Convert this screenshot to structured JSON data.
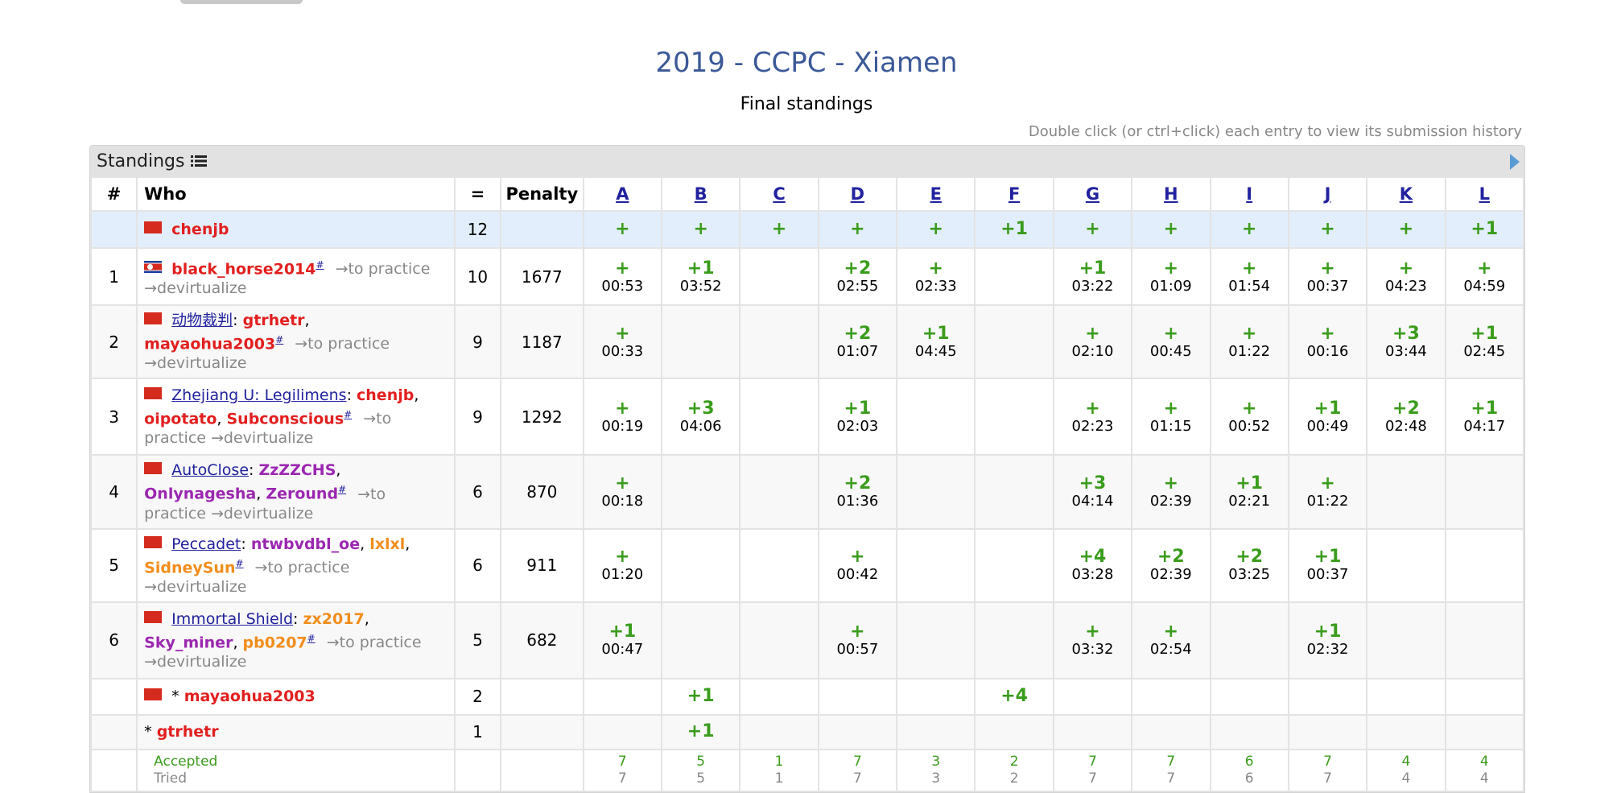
{
  "page": {
    "title": "2019 - CCPC - Xiamen",
    "subtitle": "Final standings",
    "hint": "Double click (or ctrl+click) each entry to view its submission history"
  },
  "panel": {
    "header": "Standings"
  },
  "headers": {
    "rank": "#",
    "who": "Who",
    "solved": "=",
    "penalty": "Penalty"
  },
  "problems": [
    "A",
    "B",
    "C",
    "D",
    "E",
    "F",
    "G",
    "H",
    "I",
    "J",
    "K",
    "L"
  ],
  "common": {
    "to_practice": "→to practice",
    "devirtualize": "→devirtualize",
    "hash": "#"
  },
  "rows": [
    {
      "rank": "",
      "solved": "12",
      "penalty": "",
      "style": "lead",
      "height": 46,
      "flag": "cn",
      "who": [
        {
          "t": "chenjb",
          "c": "red"
        }
      ],
      "links": false,
      "cells": [
        [
          "+",
          ""
        ],
        [
          "+",
          ""
        ],
        [
          "+",
          ""
        ],
        [
          "+",
          ""
        ],
        [
          "+",
          ""
        ],
        [
          "+1",
          ""
        ],
        [
          "+",
          ""
        ],
        [
          "+",
          ""
        ],
        [
          "+",
          ""
        ],
        [
          "+",
          ""
        ],
        [
          "+",
          ""
        ],
        [
          "+1",
          ""
        ]
      ]
    },
    {
      "rank": "1",
      "solved": "10",
      "penalty": "1677",
      "style": "even",
      "height": 71,
      "flag": "kp",
      "who": [
        {
          "t": "black_horse2014",
          "c": "red"
        },
        {
          "t": "#",
          "c": "hash"
        }
      ],
      "links": true,
      "cells": [
        [
          "+",
          "00:53"
        ],
        [
          "+1",
          "03:52"
        ],
        [
          "",
          ""
        ],
        [
          "+2",
          "02:55"
        ],
        [
          "+",
          "02:33"
        ],
        [
          "",
          ""
        ],
        [
          "+1",
          "03:22"
        ],
        [
          "+",
          "01:09"
        ],
        [
          "+",
          "01:54"
        ],
        [
          "+",
          "00:37"
        ],
        [
          "+",
          "04:23"
        ],
        [
          "+",
          "04:59"
        ]
      ]
    },
    {
      "rank": "2",
      "solved": "9",
      "penalty": "1187",
      "style": "odd",
      "height": 72,
      "flag": "cn",
      "who": [
        {
          "t": "动物裁判",
          "c": "team"
        },
        {
          "t": ": ",
          "c": ""
        },
        {
          "t": "gtrhetr",
          "c": "red"
        },
        {
          "t": ", ",
          "c": ""
        },
        {
          "t": "mayaohua2003",
          "c": "red"
        },
        {
          "t": "#",
          "c": "hash"
        }
      ],
      "links": true,
      "cells": [
        [
          "+",
          "00:33"
        ],
        [
          "",
          ""
        ],
        [
          "",
          ""
        ],
        [
          "+2",
          "01:07"
        ],
        [
          "+1",
          "04:45"
        ],
        [
          "",
          ""
        ],
        [
          "+",
          "02:10"
        ],
        [
          "+",
          "00:45"
        ],
        [
          "+",
          "01:22"
        ],
        [
          "+",
          "00:16"
        ],
        [
          "+3",
          "03:44"
        ],
        [
          "+1",
          "02:45"
        ]
      ]
    },
    {
      "rank": "3",
      "solved": "9",
      "penalty": "1292",
      "style": "even",
      "height": 95,
      "flag": "cn",
      "who": [
        {
          "t": "Zhejiang U: Legilimens",
          "c": "team"
        },
        {
          "t": ": ",
          "c": ""
        },
        {
          "t": "chenjb",
          "c": "red"
        },
        {
          "t": ", ",
          "c": ""
        },
        {
          "t": "oipotato",
          "c": "red"
        },
        {
          "t": ", ",
          "c": ""
        },
        {
          "t": "Subconscious",
          "c": "red"
        },
        {
          "t": "#",
          "c": "hash"
        }
      ],
      "links": true,
      "cells": [
        [
          "+",
          "00:19"
        ],
        [
          "+3",
          "04:06"
        ],
        [
          "",
          ""
        ],
        [
          "+1",
          "02:03"
        ],
        [
          "",
          ""
        ],
        [
          "",
          ""
        ],
        [
          "+",
          "02:23"
        ],
        [
          "+",
          "01:15"
        ],
        [
          "+",
          "00:52"
        ],
        [
          "+1",
          "00:49"
        ],
        [
          "+2",
          "02:48"
        ],
        [
          "+1",
          "04:17"
        ]
      ]
    },
    {
      "rank": "4",
      "solved": "6",
      "penalty": "870",
      "style": "odd",
      "height": 70,
      "flag": "cn",
      "who": [
        {
          "t": "AutoClose",
          "c": "team"
        },
        {
          "t": ": ",
          "c": ""
        },
        {
          "t": "ZzZZCHS",
          "c": "purple"
        },
        {
          "t": ", ",
          "c": ""
        },
        {
          "t": "Onlynagesha",
          "c": "purple"
        },
        {
          "t": ", ",
          "c": ""
        },
        {
          "t": "Zeround",
          "c": "purple"
        },
        {
          "t": "#",
          "c": "hash"
        }
      ],
      "links": true,
      "cells": [
        [
          "+",
          "00:18"
        ],
        [
          "",
          ""
        ],
        [
          "",
          ""
        ],
        [
          "+2",
          "01:36"
        ],
        [
          "",
          ""
        ],
        [
          "",
          ""
        ],
        [
          "+3",
          "04:14"
        ],
        [
          "+",
          "02:39"
        ],
        [
          "+1",
          "02:21"
        ],
        [
          "+",
          "01:22"
        ],
        [
          "",
          ""
        ],
        [
          "",
          ""
        ]
      ]
    },
    {
      "rank": "5",
      "solved": "6",
      "penalty": "911",
      "style": "even",
      "height": 70,
      "flag": "cn",
      "who": [
        {
          "t": "Peccadet",
          "c": "team"
        },
        {
          "t": ": ",
          "c": ""
        },
        {
          "t": "ntwbvdbl_oe",
          "c": "purple"
        },
        {
          "t": ", ",
          "c": ""
        },
        {
          "t": "lxlxl",
          "c": "orange"
        },
        {
          "t": ", ",
          "c": ""
        },
        {
          "t": "SidneySun",
          "c": "orange"
        },
        {
          "t": "#",
          "c": "hash"
        }
      ],
      "links": true,
      "cells": [
        [
          "+",
          "01:20"
        ],
        [
          "",
          ""
        ],
        [
          "",
          ""
        ],
        [
          "+",
          "00:42"
        ],
        [
          "",
          ""
        ],
        [
          "",
          ""
        ],
        [
          "+4",
          "03:28"
        ],
        [
          "+2",
          "02:39"
        ],
        [
          "+2",
          "03:25"
        ],
        [
          "+1",
          "00:37"
        ],
        [
          "",
          ""
        ],
        [
          "",
          ""
        ]
      ]
    },
    {
      "rank": "6",
      "solved": "5",
      "penalty": "682",
      "style": "odd",
      "height": 95,
      "flag": "cn",
      "who": [
        {
          "t": "Immortal Shield",
          "c": "team"
        },
        {
          "t": ": ",
          "c": ""
        },
        {
          "t": "zx2017",
          "c": "orange"
        },
        {
          "t": ", ",
          "c": ""
        },
        {
          "t": "Sky_miner",
          "c": "purple"
        },
        {
          "t": ", ",
          "c": ""
        },
        {
          "t": "pb0207",
          "c": "orange"
        },
        {
          "t": "#",
          "c": "hash"
        }
      ],
      "links": true,
      "cells": [
        [
          "+1",
          "00:47"
        ],
        [
          "",
          ""
        ],
        [
          "",
          ""
        ],
        [
          "+",
          "00:57"
        ],
        [
          "",
          ""
        ],
        [
          "",
          ""
        ],
        [
          "+",
          "03:32"
        ],
        [
          "+",
          "02:54"
        ],
        [
          "",
          ""
        ],
        [
          "+1",
          "02:32"
        ],
        [
          "",
          ""
        ],
        [
          "",
          ""
        ]
      ]
    },
    {
      "rank": "",
      "solved": "2",
      "penalty": "",
      "style": "even",
      "height": 45,
      "flag": "cn",
      "who": [
        {
          "t": "* ",
          "c": ""
        },
        {
          "t": "mayaohua2003",
          "c": "red"
        }
      ],
      "links": false,
      "cells": [
        [
          "",
          ""
        ],
        [
          "+1",
          ""
        ],
        [
          "",
          ""
        ],
        [
          "",
          ""
        ],
        [
          "",
          ""
        ],
        [
          "+4",
          ""
        ],
        [
          "",
          ""
        ],
        [
          "",
          ""
        ],
        [
          "",
          ""
        ],
        [
          "",
          ""
        ],
        [
          "",
          ""
        ],
        [
          "",
          ""
        ]
      ]
    },
    {
      "rank": "",
      "solved": "1",
      "penalty": "",
      "style": "odd",
      "height": 43,
      "flag": "",
      "who": [
        {
          "t": "* ",
          "c": ""
        },
        {
          "t": "gtrhetr",
          "c": "red"
        }
      ],
      "links": false,
      "cells": [
        [
          "",
          ""
        ],
        [
          "+1",
          ""
        ],
        [
          "",
          ""
        ],
        [
          "",
          ""
        ],
        [
          "",
          ""
        ],
        [
          "",
          ""
        ],
        [
          "",
          ""
        ],
        [
          "",
          ""
        ],
        [
          "",
          ""
        ],
        [
          "",
          ""
        ],
        [
          "",
          ""
        ],
        [
          "",
          ""
        ]
      ]
    }
  ],
  "stats": {
    "accepted_label": "Accepted",
    "tried_label": "Tried",
    "accepted": [
      "7",
      "5",
      "1",
      "7",
      "3",
      "2",
      "7",
      "7",
      "6",
      "7",
      "4",
      "4"
    ],
    "tried": [
      "7",
      "5",
      "1",
      "7",
      "3",
      "2",
      "7",
      "7",
      "6",
      "7",
      "4",
      "4"
    ]
  }
}
